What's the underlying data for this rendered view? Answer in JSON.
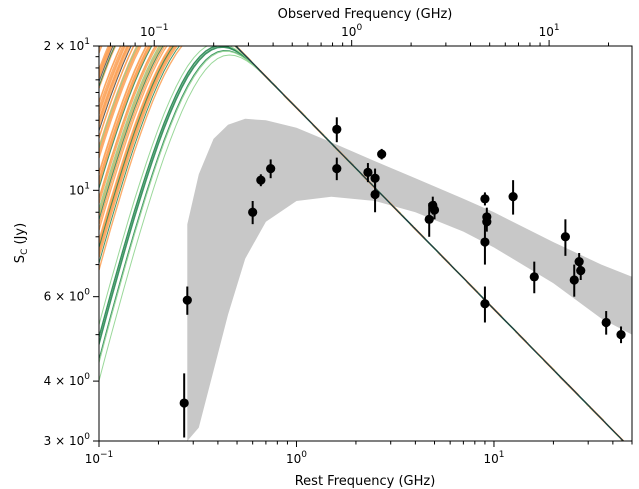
{
  "chart_data": {
    "type": "scatter",
    "title": "",
    "xlabel": "Rest Frequency (GHz)",
    "x2label": "Observed Frequency (GHz)",
    "ylabel_main": "S",
    "ylabel_sub": "C",
    "ylabel_unit": " (Jy)",
    "xscale": "log",
    "yscale": "log",
    "xlim": [
      0.1,
      50
    ],
    "ylim": [
      3,
      20
    ],
    "x2lim": [
      0.0525,
      26.3
    ],
    "grid": false,
    "legend": "none",
    "x_ticks": [
      {
        "value": 0.1,
        "base": "10",
        "exp": "−1"
      },
      {
        "value": 1,
        "base": "10",
        "exp": "0"
      },
      {
        "value": 10,
        "base": "10",
        "exp": "1"
      }
    ],
    "x2_ticks": [
      {
        "value": 0.1,
        "base": "10",
        "exp": "−1"
      },
      {
        "value": 1,
        "base": "10",
        "exp": "0"
      },
      {
        "value": 10,
        "base": "10",
        "exp": "1"
      }
    ],
    "y_ticks": [
      {
        "value": 20,
        "mant": "2",
        "base": "10",
        "exp": "1"
      },
      {
        "value": 10,
        "mant": "",
        "base": "10",
        "exp": "1"
      },
      {
        "value": 6,
        "mant": "6",
        "base": "10",
        "exp": "0"
      },
      {
        "value": 4,
        "mant": "4",
        "base": "10",
        "exp": "0"
      },
      {
        "value": 3,
        "mant": "3",
        "base": "10",
        "exp": "0"
      }
    ],
    "colors": {
      "data_points": "#000000",
      "confidence_band": "#c8c8c8",
      "blue_models": "#6ab0dc",
      "orange_models": "#fca45c",
      "green_models": "#2e8b57",
      "light_green_models": "#8fd48f",
      "dark_models": "#1f3a4a"
    },
    "confidence_band": {
      "x": [
        0.28,
        0.32,
        0.38,
        0.45,
        0.55,
        0.7,
        1.0,
        1.5,
        2.5,
        4,
        7,
        10,
        20,
        35,
        50
      ],
      "upper": [
        8.5,
        10.8,
        12.8,
        13.7,
        14.1,
        14.0,
        13.5,
        12.6,
        11.5,
        10.6,
        9.6,
        9.0,
        7.8,
        7.0,
        6.6
      ],
      "lower": [
        3.0,
        3.2,
        4.2,
        5.5,
        7.2,
        8.6,
        9.5,
        9.7,
        9.5,
        9.0,
        8.2,
        7.6,
        6.4,
        5.4,
        5.0
      ]
    },
    "points": [
      {
        "x": 0.27,
        "y": 3.6,
        "err": 0.55
      },
      {
        "x": 0.28,
        "y": 5.9,
        "err": 0.4
      },
      {
        "x": 0.6,
        "y": 9.0,
        "err": 0.5
      },
      {
        "x": 0.66,
        "y": 10.5,
        "err": 0.3
      },
      {
        "x": 0.74,
        "y": 11.1,
        "err": 0.5
      },
      {
        "x": 1.6,
        "y": 13.4,
        "err": 0.8
      },
      {
        "x": 1.6,
        "y": 11.1,
        "err": 0.6
      },
      {
        "x": 2.3,
        "y": 10.9,
        "err": 0.5
      },
      {
        "x": 2.5,
        "y": 10.6,
        "err": 0.5
      },
      {
        "x": 2.5,
        "y": 9.8,
        "err": 0.8
      },
      {
        "x": 2.7,
        "y": 11.9,
        "err": 0.3
      },
      {
        "x": 4.7,
        "y": 8.7,
        "err": 0.7
      },
      {
        "x": 4.9,
        "y": 9.3,
        "err": 0.4
      },
      {
        "x": 5.0,
        "y": 9.1,
        "err": 0.4
      },
      {
        "x": 9.0,
        "y": 9.6,
        "err": 0.3
      },
      {
        "x": 9.0,
        "y": 7.8,
        "err": 0.8
      },
      {
        "x": 9.2,
        "y": 8.8,
        "err": 0.4
      },
      {
        "x": 9.2,
        "y": 8.6,
        "err": 0.4
      },
      {
        "x": 9.0,
        "y": 5.8,
        "err": 0.5
      },
      {
        "x": 12.5,
        "y": 9.7,
        "err": 0.8
      },
      {
        "x": 16.0,
        "y": 6.6,
        "err": 0.5
      },
      {
        "x": 23.0,
        "y": 8.0,
        "err": 0.7
      },
      {
        "x": 25.5,
        "y": 6.5,
        "err": 0.5
      },
      {
        "x": 27.0,
        "y": 7.1,
        "err": 0.3
      },
      {
        "x": 27.5,
        "y": 6.8,
        "err": 0.3
      },
      {
        "x": 37.0,
        "y": 5.3,
        "err": 0.3
      },
      {
        "x": 44.0,
        "y": 5.0,
        "err": 0.2
      }
    ]
  }
}
